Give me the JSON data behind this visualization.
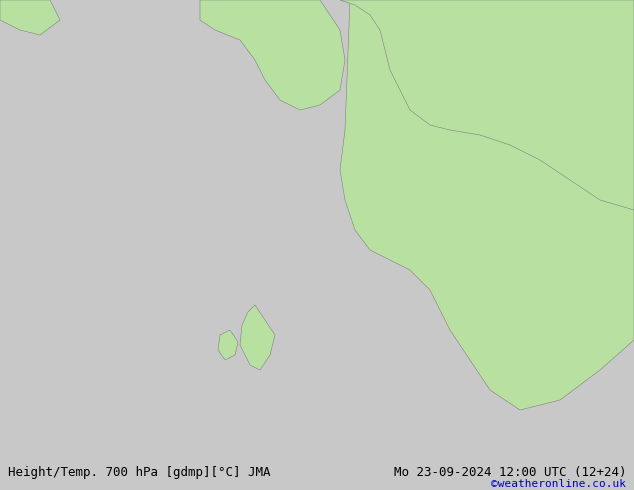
{
  "fig_width": 6.34,
  "fig_height": 4.9,
  "dpi": 100,
  "bg_color": "#c8c8c8",
  "land_color": "#b8e0a0",
  "sea_color": "#d8d8d8",
  "coast_color": "#808080",
  "border_color": "#a0a0a0",
  "bottom_label_left": "Height/Temp. 700 hPa [gdmp][°C] JMA",
  "bottom_label_right": "Mo 23-09-2024 12:00 UTC (12+24)",
  "credit": "©weatheronline.co.uk",
  "font_size_bottom": 9,
  "font_size_credit": 8,
  "extent": [
    -35,
    40,
    28,
    75
  ]
}
